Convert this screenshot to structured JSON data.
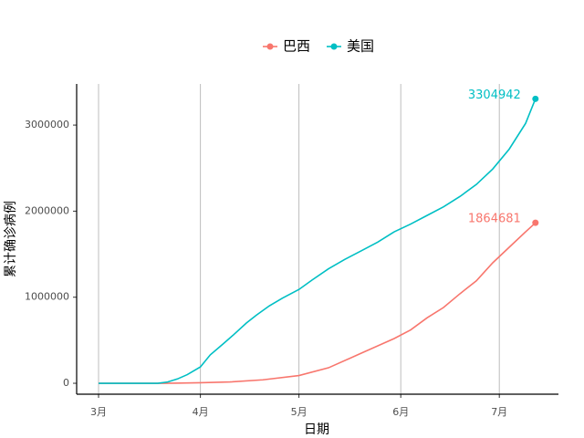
{
  "chart_data": {
    "type": "line",
    "x_label": "日期",
    "y_label": "累计确诊病例",
    "xlim": [
      -6.67,
      140
    ],
    "ylim": [
      -127000,
      3478000
    ],
    "xticks": [
      {
        "value": 0,
        "label": "3月"
      },
      {
        "value": 31,
        "label": "4月"
      },
      {
        "value": 61,
        "label": "5月"
      },
      {
        "value": 92,
        "label": "6月"
      },
      {
        "value": 122,
        "label": "7月"
      }
    ],
    "yticks": [
      0,
      1000000,
      2000000,
      3000000
    ],
    "grid": "x",
    "legend": "top",
    "series": [
      {
        "name": "巴西",
        "color": "#F8766D",
        "x": [
          0,
          20,
          25,
          31,
          40,
          50,
          61,
          70,
          80,
          90,
          95,
          100,
          105,
          110,
          115,
          120,
          125,
          130,
          133
        ],
        "values": [
          0,
          0,
          2000,
          6000,
          15000,
          40000,
          90000,
          180000,
          350000,
          520000,
          620000,
          760000,
          880000,
          1040000,
          1190000,
          1400000,
          1580000,
          1760000,
          1864681
        ]
      },
      {
        "name": "美国",
        "color": "#00BFC4",
        "x": [
          0,
          10,
          18,
          21,
          24,
          27,
          31,
          34,
          38,
          41,
          45,
          48,
          52,
          56,
          61,
          65,
          70,
          75,
          80,
          85,
          90,
          95,
          100,
          105,
          110,
          115,
          120,
          125,
          130,
          133
        ],
        "values": [
          0,
          0,
          100,
          15000,
          50000,
          100000,
          190000,
          330000,
          460000,
          560000,
          700000,
          790000,
          900000,
          990000,
          1090000,
          1200000,
          1330000,
          1440000,
          1540000,
          1640000,
          1760000,
          1850000,
          1950000,
          2050000,
          2170000,
          2310000,
          2490000,
          2720000,
          3020000,
          3304942
        ]
      }
    ]
  }
}
